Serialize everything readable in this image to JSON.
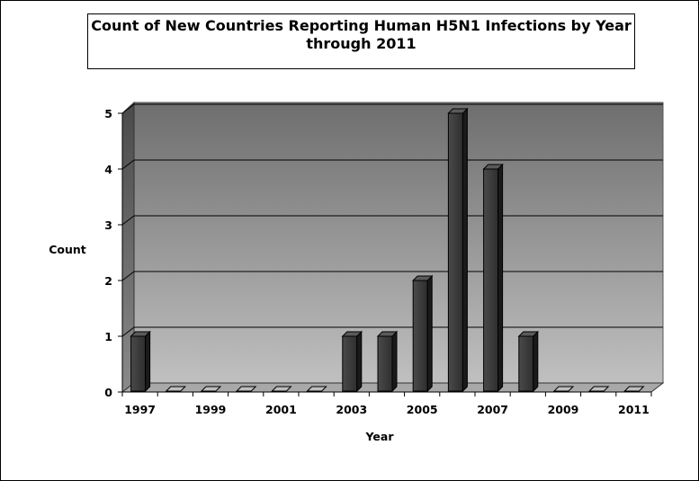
{
  "chart_data": {
    "type": "bar",
    "title_line1": "Count of New Countries Reporting Human H5N1 Infections by Year",
    "title_line2": "through 2011",
    "xlabel": "Year",
    "ylabel": "Count",
    "categories": [
      "1997",
      "1998",
      "1999",
      "2000",
      "2001",
      "2002",
      "2003",
      "2004",
      "2005",
      "2006",
      "2007",
      "2008",
      "2009",
      "2010",
      "2011"
    ],
    "x_tick_labels": [
      "1997",
      "1999",
      "2001",
      "2003",
      "2005",
      "2007",
      "2009",
      "2011"
    ],
    "values": [
      1,
      0,
      0,
      0,
      0,
      0,
      1,
      1,
      2,
      5,
      4,
      1,
      0,
      0,
      0
    ],
    "ylim": [
      0,
      5
    ],
    "y_ticks": [
      0,
      1,
      2,
      3,
      4,
      5
    ],
    "grid": true,
    "legend": "none",
    "colors": {
      "bar_front": "#3a3a3a",
      "bar_side": "#1a1a1a",
      "bar_top": "#5a5a5a",
      "wall_top": "#6e6e6e",
      "wall_bottom": "#c0c0c0",
      "side_wall": "#555555",
      "floor": "#a8a8a8"
    }
  }
}
